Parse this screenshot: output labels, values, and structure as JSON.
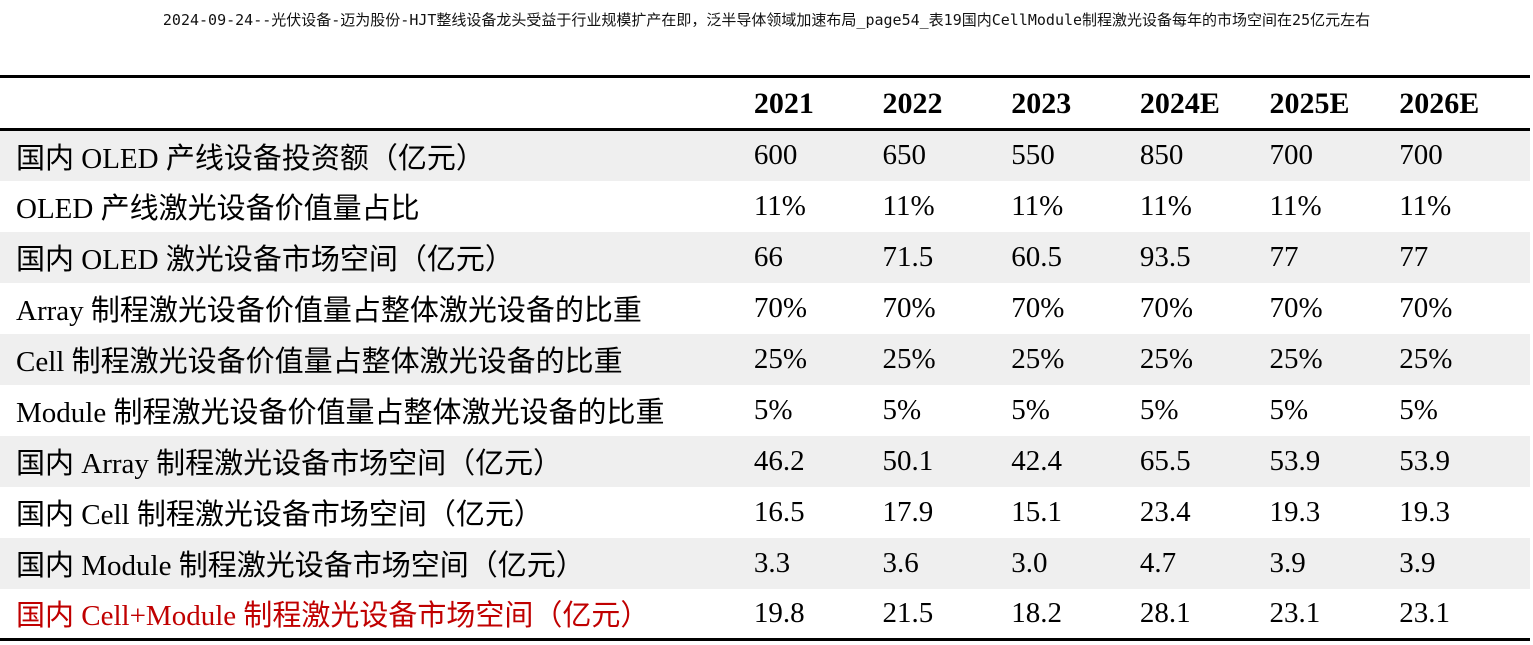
{
  "caption": "2024-09-24--光伏设备-迈为股份-HJT整线设备龙头受益于行业规模扩产在即，泛半导体领域加速布局_page54_表19国内CellModule制程激光设备每年的市场空间在25亿元左右",
  "table": {
    "header": [
      "",
      "2021",
      "2022",
      "2023",
      "2024E",
      "2025E",
      "2026E"
    ],
    "rows": [
      {
        "label": "国内 OLED 产线设备投资额（亿元）",
        "values": [
          "600",
          "650",
          "550",
          "850",
          "700",
          "700"
        ]
      },
      {
        "label": "OLED 产线激光设备价值量占比",
        "values": [
          "11%",
          "11%",
          "11%",
          "11%",
          "11%",
          "11%"
        ]
      },
      {
        "label": "国内 OLED 激光设备市场空间（亿元）",
        "values": [
          "66",
          "71.5",
          "60.5",
          "93.5",
          "77",
          "77"
        ]
      },
      {
        "label": "Array 制程激光设备价值量占整体激光设备的比重",
        "values": [
          "70%",
          "70%",
          "70%",
          "70%",
          "70%",
          "70%"
        ]
      },
      {
        "label": "Cell 制程激光设备价值量占整体激光设备的比重",
        "values": [
          "25%",
          "25%",
          "25%",
          "25%",
          "25%",
          "25%"
        ]
      },
      {
        "label": "Module 制程激光设备价值量占整体激光设备的比重",
        "values": [
          "5%",
          "5%",
          "5%",
          "5%",
          "5%",
          "5%"
        ]
      },
      {
        "label": "国内 Array 制程激光设备市场空间（亿元）",
        "values": [
          "46.2",
          "50.1",
          "42.4",
          "65.5",
          "53.9",
          "53.9"
        ]
      },
      {
        "label": "国内 Cell 制程激光设备市场空间（亿元）",
        "values": [
          "16.5",
          "17.9",
          "15.1",
          "23.4",
          "19.3",
          "19.3"
        ]
      },
      {
        "label": "国内 Module 制程激光设备市场空间（亿元）",
        "values": [
          "3.3",
          "3.6",
          "3.0",
          "4.7",
          "3.9",
          "3.9"
        ]
      },
      {
        "label": "国内 Cell+Module 制程激光设备市场空间（亿元）",
        "values": [
          "19.8",
          "21.5",
          "18.2",
          "28.1",
          "23.1",
          "23.1"
        ]
      }
    ],
    "highlight_color": "#c00000",
    "shade_color": "#efefef"
  }
}
